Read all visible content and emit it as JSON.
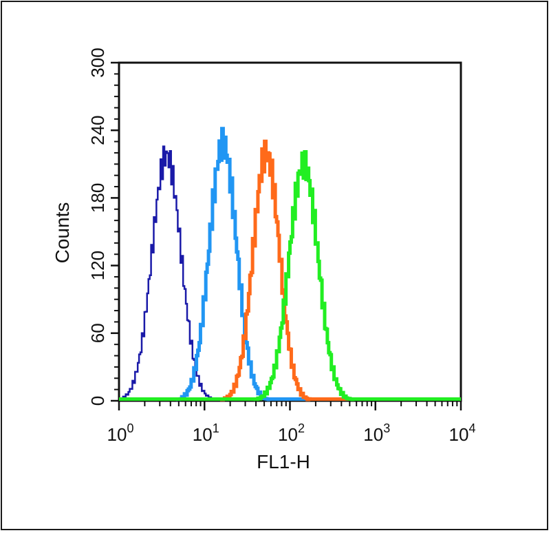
{
  "chart_data": {
    "type": "area",
    "xlabel": "FL1-H",
    "ylabel": "Counts",
    "x_scale": "log",
    "xlim": [
      1,
      10000
    ],
    "ylim": [
      0,
      300
    ],
    "y_ticks": [
      "0",
      "60",
      "120",
      "180",
      "240",
      "300"
    ],
    "x_ticks": [
      {
        "base": "10",
        "exp": "0"
      },
      {
        "base": "10",
        "exp": "1"
      },
      {
        "base": "10",
        "exp": "2"
      },
      {
        "base": "10",
        "exp": "3"
      },
      {
        "base": "10",
        "exp": "4"
      }
    ],
    "grid": false,
    "series": [
      {
        "color": "#1a1aa8",
        "stroke": 2.5,
        "peak_x": 3.6,
        "peak_y": 218,
        "sigma_log": 0.17
      },
      {
        "color": "#2196f3",
        "stroke": 5,
        "peak_x": 16.5,
        "peak_y": 228,
        "sigma_log": 0.16
      },
      {
        "color": "#ff6a1a",
        "stroke": 5,
        "peak_x": 53,
        "peak_y": 220,
        "sigma_log": 0.155
      },
      {
        "color": "#22ee22",
        "stroke": 5,
        "peak_x": 145,
        "peak_y": 210,
        "sigma_log": 0.17
      }
    ]
  }
}
